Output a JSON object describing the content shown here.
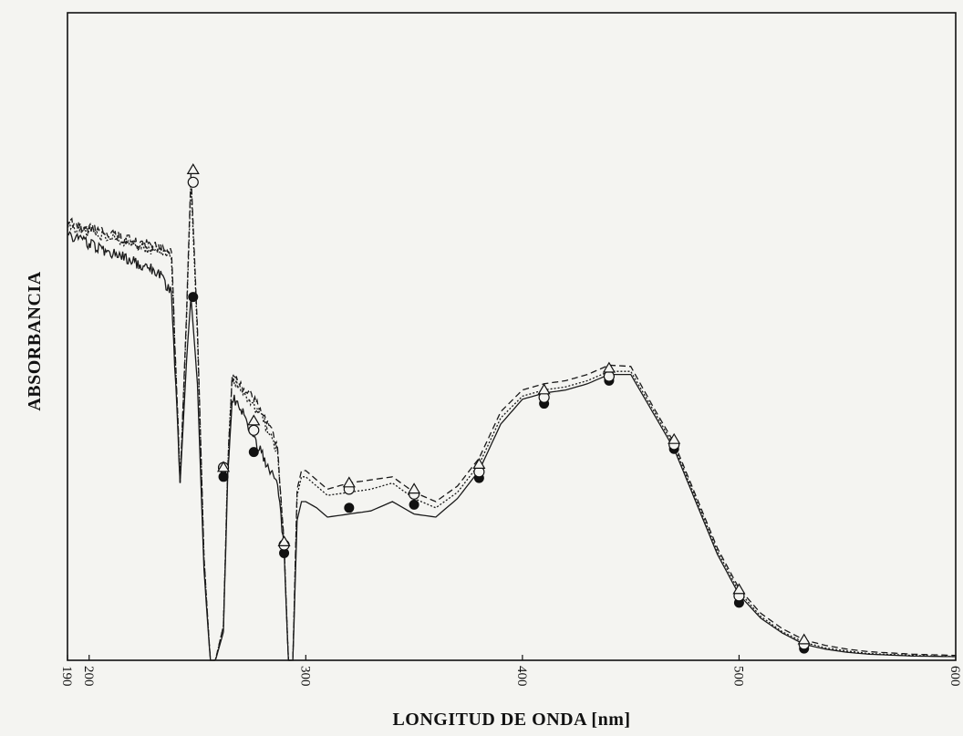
{
  "chart_data": {
    "type": "line",
    "title": "",
    "xlabel": "LONGITUD DE ONDA [nm]",
    "ylabel": "ABSORBANCIA",
    "xlim": [
      190,
      600
    ],
    "ylim": [
      0,
      1
    ],
    "x_ticks": [
      190,
      200,
      300,
      400,
      500,
      600
    ],
    "x_tick_labels": [
      "190",
      "200",
      "300",
      "400",
      "500",
      "600"
    ],
    "x_tick_orientation": "rotated-90",
    "y_tick_labels": [],
    "grid": false,
    "legend": "none",
    "series": [
      {
        "marker": "filled-circle",
        "line_style": "solid",
        "x": [
          190,
          200,
          215,
          225,
          232,
          238,
          242,
          245,
          247,
          250,
          253,
          256,
          258,
          262,
          264,
          266,
          270,
          275,
          282,
          287,
          290,
          292,
          294,
          296,
          298,
          300,
          305,
          310,
          320,
          330,
          340,
          350,
          360,
          370,
          380,
          390,
          400,
          410,
          420,
          430,
          440,
          450,
          460,
          470,
          480,
          490,
          500,
          510,
          520,
          530,
          540,
          550,
          560,
          580,
          600
        ],
        "y": [
          0.68,
          0.665,
          0.645,
          0.63,
          0.62,
          0.585,
          0.28,
          0.48,
          0.58,
          0.44,
          0.14,
          -0.01,
          -0.01,
          0.04,
          0.29,
          0.42,
          0.4,
          0.36,
          0.31,
          0.28,
          0.17,
          -0.01,
          -0.01,
          0.22,
          0.25,
          0.25,
          0.24,
          0.225,
          0.23,
          0.235,
          0.25,
          0.23,
          0.225,
          0.255,
          0.3,
          0.375,
          0.415,
          0.425,
          0.43,
          0.44,
          0.455,
          0.455,
          0.395,
          0.335,
          0.25,
          0.165,
          0.1,
          0.062,
          0.038,
          0.02,
          0.012,
          0.007,
          0.004,
          0.001,
          0.0
        ],
        "markers_x": [
          248,
          262,
          276,
          290,
          320,
          350,
          380,
          410,
          440,
          470,
          500,
          530
        ],
        "markers_y": [
          0.58,
          0.29,
          0.33,
          0.167,
          0.24,
          0.245,
          0.288,
          0.408,
          0.445,
          0.335,
          0.087,
          0.013
        ]
      },
      {
        "marker": "open-circle",
        "line_style": "dotted",
        "x": [
          190,
          200,
          215,
          225,
          232,
          238,
          242,
          245,
          247,
          250,
          253,
          256,
          258,
          262,
          264,
          266,
          270,
          275,
          282,
          287,
          290,
          292,
          294,
          296,
          298,
          300,
          305,
          310,
          320,
          330,
          340,
          350,
          360,
          370,
          380,
          390,
          400,
          410,
          420,
          430,
          440,
          450,
          460,
          470,
          480,
          490,
          500,
          510,
          520,
          530,
          540,
          550,
          560,
          580,
          600
        ],
        "y": [
          0.695,
          0.685,
          0.67,
          0.66,
          0.655,
          0.645,
          0.28,
          0.55,
          0.765,
          0.52,
          0.16,
          -0.01,
          -0.01,
          0.05,
          0.31,
          0.45,
          0.43,
          0.41,
          0.37,
          0.33,
          0.18,
          -0.01,
          -0.01,
          0.26,
          0.29,
          0.29,
          0.275,
          0.26,
          0.265,
          0.27,
          0.28,
          0.255,
          0.24,
          0.265,
          0.31,
          0.385,
          0.42,
          0.43,
          0.435,
          0.445,
          0.46,
          0.46,
          0.4,
          0.34,
          0.255,
          0.17,
          0.105,
          0.065,
          0.04,
          0.023,
          0.014,
          0.009,
          0.005,
          0.002,
          0.0
        ],
        "markers_x": [
          248,
          262,
          276,
          290,
          320,
          350,
          380,
          410,
          440,
          470,
          500,
          530
        ],
        "markers_y": [
          0.765,
          0.305,
          0.365,
          0.18,
          0.27,
          0.262,
          0.298,
          0.418,
          0.452,
          0.342,
          0.098,
          0.02
        ]
      },
      {
        "marker": "open-triangle",
        "line_style": "dashed",
        "x": [
          190,
          200,
          215,
          225,
          232,
          238,
          242,
          245,
          247,
          250,
          253,
          256,
          258,
          262,
          264,
          266,
          270,
          275,
          282,
          287,
          290,
          292,
          294,
          296,
          298,
          300,
          305,
          310,
          320,
          330,
          340,
          350,
          360,
          370,
          380,
          390,
          400,
          410,
          420,
          430,
          440,
          450,
          460,
          470,
          480,
          490,
          500,
          510,
          520,
          530,
          540,
          550,
          560,
          580,
          600
        ],
        "y": [
          0.7,
          0.69,
          0.675,
          0.665,
          0.66,
          0.655,
          0.28,
          0.56,
          0.78,
          0.53,
          0.16,
          -0.01,
          -0.01,
          0.05,
          0.31,
          0.45,
          0.44,
          0.42,
          0.38,
          0.34,
          0.18,
          -0.01,
          -0.01,
          0.27,
          0.3,
          0.3,
          0.285,
          0.27,
          0.28,
          0.285,
          0.29,
          0.265,
          0.25,
          0.275,
          0.32,
          0.395,
          0.43,
          0.44,
          0.445,
          0.455,
          0.47,
          0.468,
          0.405,
          0.345,
          0.26,
          0.175,
          0.11,
          0.07,
          0.045,
          0.027,
          0.018,
          0.012,
          0.008,
          0.004,
          0.002
        ],
        "markers_x": [
          248,
          262,
          276,
          290,
          320,
          350,
          380,
          410,
          440,
          470,
          500,
          530
        ],
        "markers_y": [
          0.785,
          0.305,
          0.38,
          0.185,
          0.28,
          0.27,
          0.31,
          0.43,
          0.465,
          0.35,
          0.108,
          0.027
        ]
      }
    ]
  }
}
